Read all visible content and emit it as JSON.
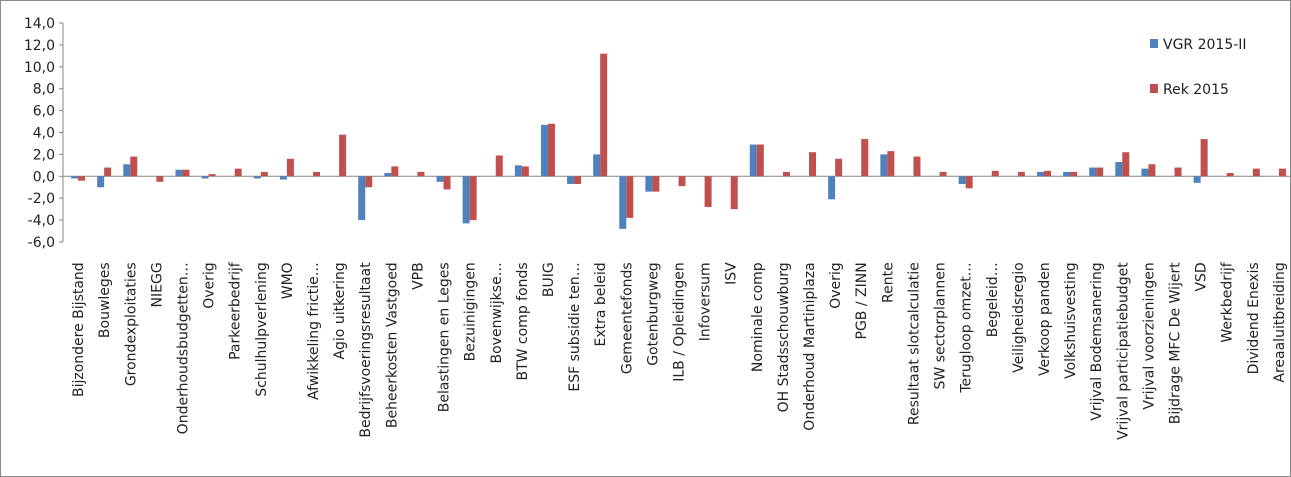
{
  "chart_data": {
    "type": "bar",
    "title": "",
    "xlabel": "",
    "ylabel": "",
    "ylim": [
      -6,
      14
    ],
    "yticks": [
      "-6,0",
      "-4,0",
      "-2,0",
      "0,0",
      "2,0",
      "4,0",
      "6,0",
      "8,0",
      "10,0",
      "12,0",
      "14,0"
    ],
    "legend_position": "right",
    "categories": [
      "Bijzondere Bijstand",
      "Bouwleges",
      "Grondexploitaties",
      "NIEGG",
      "Onderhoudsbudgetten…",
      "Overig",
      "Parkeerbedrijf",
      "Schulhulpverlening",
      "WMO",
      "Afwikkeling frictie…",
      "Agio uitkering",
      "Bedrijfsvoeringsresultaat",
      "Beheerkosten Vastgoed",
      "VPB",
      "Belastingen en Leges",
      "Bezuinigingen",
      "Bovenwijkse…",
      "BTW comp fonds",
      "BUIG",
      "ESF subsidie ten…",
      "Extra beleid",
      "Gemeentefonds",
      "Gotenburgweg",
      "ILB / Opleidingen",
      "Infoversum",
      "ISV",
      "Nominale comp",
      "OH Stadsschouwburg",
      "Onderhoud Martiniplaza",
      "Overig",
      "PGB / ZINN",
      "Rente",
      "Resultaat slotcalculatie",
      "SW sectorplannen",
      "Terugloop omzet…",
      "Begeleid…",
      "Veiligheidsregio",
      "Verkoop panden",
      "Volkshuisvesting",
      "Vrijval Bodemsanering",
      "Vrijval participatiebudget",
      "Vrijval voorzieningen",
      "Bijdrage MFC De Wijert",
      "VSD",
      "Werkbedrijf",
      "Dividend Enexis",
      "Areaaluitbreiding"
    ],
    "series": [
      {
        "name": "VGR 2015-II",
        "color": "#4f81bd",
        "values": [
          -0.2,
          -1.0,
          1.1,
          0.0,
          0.6,
          -0.2,
          0.0,
          -0.2,
          -0.3,
          0.0,
          0.0,
          -4.0,
          0.3,
          0.0,
          -0.5,
          -4.3,
          0.0,
          1.0,
          4.7,
          -0.7,
          2.0,
          -4.8,
          -1.4,
          0.0,
          0.0,
          0.0,
          2.9,
          0.0,
          0.0,
          -2.1,
          0.0,
          2.0,
          0.0,
          0.0,
          -0.7,
          0.0,
          0.0,
          0.4,
          0.4,
          0.8,
          1.3,
          0.7,
          0.0,
          -0.6,
          0.0,
          0.0,
          0.0
        ]
      },
      {
        "name": "Rek 2015",
        "color": "#c0504d",
        "values": [
          -0.4,
          0.8,
          1.8,
          -0.5,
          0.6,
          0.2,
          0.7,
          0.4,
          1.6,
          0.4,
          3.8,
          -1.0,
          0.9,
          0.4,
          -1.2,
          -4.0,
          1.9,
          0.9,
          4.8,
          -0.7,
          11.2,
          -3.8,
          -1.4,
          -0.9,
          -2.8,
          -3.0,
          2.9,
          0.4,
          2.2,
          1.6,
          3.4,
          2.3,
          1.8,
          0.4,
          -1.1,
          0.5,
          0.4,
          0.5,
          0.4,
          0.8,
          2.2,
          1.1,
          0.8,
          3.4,
          0.3,
          0.7,
          0.7
        ]
      }
    ]
  }
}
